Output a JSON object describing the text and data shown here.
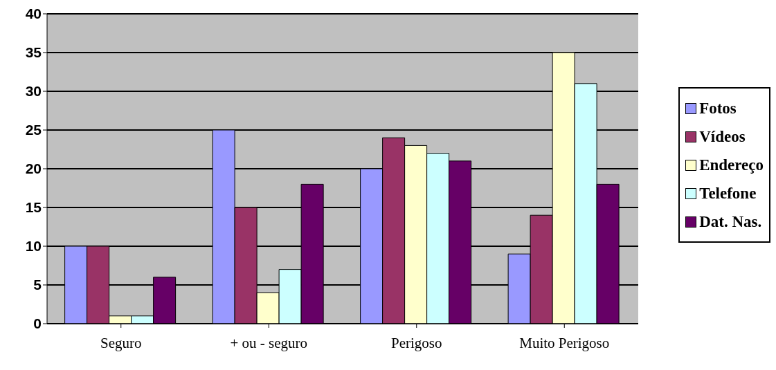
{
  "chart_data": {
    "type": "bar",
    "categories": [
      "Seguro",
      "+ ou - seguro",
      "Perigoso",
      "Muito Perigoso"
    ],
    "series": [
      {
        "name": "Fotos",
        "color": "#9999ff",
        "values": [
          10,
          25,
          20,
          9
        ]
      },
      {
        "name": "Vídeos",
        "color": "#993366",
        "values": [
          10,
          15,
          24,
          14
        ]
      },
      {
        "name": "Endereço",
        "color": "#ffffcc",
        "values": [
          1,
          4,
          23,
          35
        ]
      },
      {
        "name": "Telefone",
        "color": "#ccffff",
        "values": [
          1,
          7,
          22,
          31
        ]
      },
      {
        "name": "Dat. Nas.",
        "color": "#660066",
        "values": [
          6,
          18,
          21,
          18
        ]
      }
    ],
    "ylim": [
      0,
      40
    ],
    "yticks": [
      0,
      5,
      10,
      15,
      20,
      25,
      30,
      35,
      40
    ],
    "grid": "y",
    "legend": "right"
  }
}
